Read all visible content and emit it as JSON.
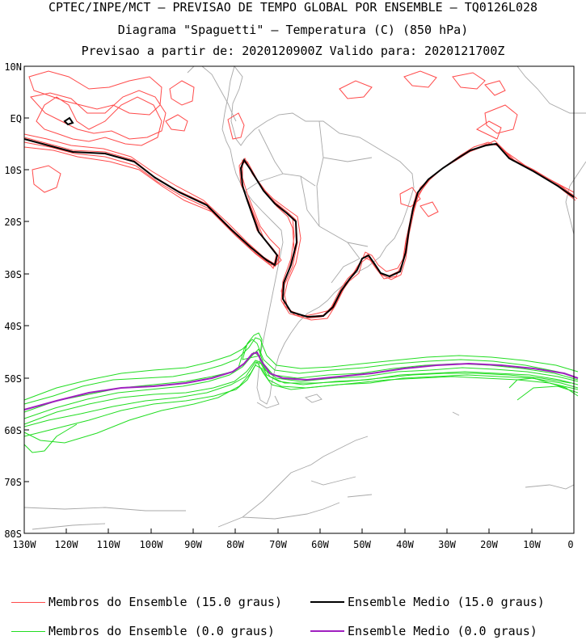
{
  "titles": {
    "line1": "CPTEC/INPE/MCT – PREVISAO DE TEMPO GLOBAL POR ENSEMBLE – TQ0126L028",
    "line2": "Diagrama \"Spaguetti\" – Temperatura (C) (850 hPa)",
    "line3": "Previsao a partir de: 2020120900Z   Valido para: 2020121700Z"
  },
  "axes": {
    "lat_labels": [
      "10N",
      "EQ",
      "10S",
      "20S",
      "30S",
      "40S",
      "50S",
      "60S",
      "70S",
      "80S"
    ],
    "lon_labels": [
      "130W",
      "120W",
      "110W",
      "100W",
      "90W",
      "80W",
      "70W",
      "60W",
      "50W",
      "40W",
      "30W",
      "20W",
      "10W",
      "0"
    ]
  },
  "legend": {
    "red_members": "Membros do Ensemble (15.0 graus)",
    "black_mean": "Ensemble Medio (15.0 graus)",
    "green_members": "Membros do Ensemble (0.0 graus)",
    "purple_mean": "Ensemble Medio (0.0 graus)"
  },
  "colors": {
    "red_members": "#ff4a4a",
    "black_mean": "#000000",
    "green_members": "#22dd22",
    "purple_mean": "#a020c0",
    "coastline": "#a8a8a8"
  }
}
